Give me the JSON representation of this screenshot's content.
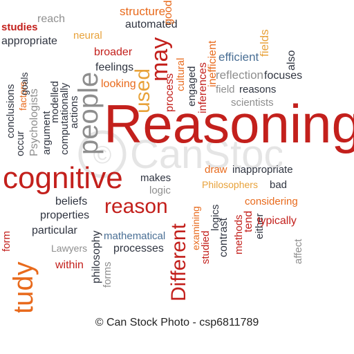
{
  "colors": {
    "red": "#c3201c",
    "orange": "#e86a1c",
    "blue": "#4a6f95",
    "gray": "#8e8e8e",
    "dark": "#2f3440",
    "gold": "#e8a23a"
  },
  "words": {
    "reasoning": "Reasoning",
    "cognitive": "cognitive",
    "reason": "reason",
    "study": "study",
    "different": "Different",
    "people": "people",
    "used": "used",
    "may": "may",
    "studies": "studies",
    "reach": "reach",
    "structure": "structure",
    "good": "good",
    "automated": "automated",
    "appropriate": "appropriate",
    "neural": "neural",
    "process": "process",
    "broader": "broader",
    "feelings": "feelings",
    "looking": "looking",
    "cultural": "cultural",
    "engaged": "engaged",
    "inferences": "inferences",
    "inefficient": "inefficient",
    "efficient": "efficient",
    "fields": "fields",
    "also": "also",
    "reflection": "reflection",
    "focuses": "focuses",
    "field": "field",
    "reasons": "reasons",
    "scientists": "scientists",
    "conclusions": "conclusions",
    "occur": "occur",
    "factors": "factors",
    "goals": "goals",
    "psychologists": "Psychologists",
    "argument": "argument",
    "modelled": "modelled",
    "computationally": "computationally",
    "actions": "actions",
    "draw": "draw",
    "inappropriate": "inappropriate",
    "philosophers": "Philosophers",
    "bad": "bad",
    "makes": "makes",
    "logic": "logic",
    "beliefs": "beliefs",
    "properties": "properties",
    "particular": "particular",
    "lawyers": "Lawyers",
    "within": "within",
    "form": "form",
    "philosophy": "philosophy",
    "forms": "forms",
    "mathematical": "mathematical",
    "processes": "processes",
    "examining": "examining",
    "studied": "studied",
    "logics": "logics",
    "contrast": "contrast",
    "methods": "methods",
    "tend": "tend",
    "either": "either",
    "considering": "considering",
    "typically": "typically",
    "affect": "affect"
  },
  "watermark": "CanStock",
  "credit": "© Can Stock Photo - csp6811789"
}
